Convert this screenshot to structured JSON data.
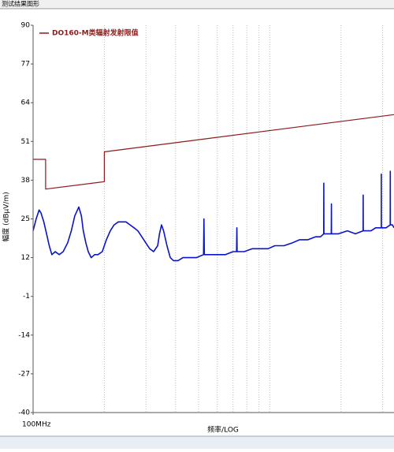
{
  "window_title": "测试结果图形",
  "chart_data": {
    "type": "line",
    "ylabel": "幅度 (dBμV/m)",
    "xlabel": "频率/LOG",
    "xlim": [
      100,
      3350
    ],
    "ylim": [
      -40,
      90
    ],
    "xlog": true,
    "yticks": [
      90,
      77,
      64,
      51,
      38,
      25,
      12,
      -1,
      -14,
      -27,
      -40
    ],
    "xticks": [
      {
        "value": 100,
        "label": "100MHz"
      }
    ],
    "xgrid": [
      200,
      300,
      400,
      500,
      600,
      700,
      800,
      900,
      1000,
      2000,
      3000
    ],
    "legend": "upper left",
    "series": [
      {
        "name": "DO160-M类辐射发射限值",
        "color": "#8b1a1a",
        "x": [
          100,
          113,
          113,
          200,
          200,
          3350
        ],
        "values": [
          45,
          45,
          35,
          37.5,
          47.5,
          60
        ]
      },
      {
        "color": "#0a14c8",
        "x": [
          100,
          103,
          106,
          108,
          111,
          114,
          117,
          120,
          124,
          129,
          134,
          140,
          145,
          150,
          156,
          160,
          163,
          167,
          171,
          176,
          182,
          188,
          196,
          204,
          212,
          220,
          229,
          238,
          247,
          257,
          267,
          277,
          288,
          299,
          311,
          323,
          336,
          342,
          349,
          356,
          368,
          380,
          392,
          410,
          430,
          457,
          490,
          525,
          527,
          529,
          560,
          600,
          650,
          700,
          724,
          726,
          728,
          780,
          844,
          900,
          984,
          1050,
          1148,
          1250,
          1338,
          1450,
          1560,
          1640,
          1690,
          1692,
          1694,
          1750,
          1820,
          1822,
          1824,
          1950,
          2130,
          2300,
          2480,
          2482,
          2484,
          2600,
          2680,
          2800,
          2890,
          2960,
          2962,
          2964,
          3050,
          3100,
          3230,
          3232,
          3234,
          3300,
          3350
        ],
        "values": [
          21,
          25,
          28,
          27,
          24,
          20,
          16,
          13,
          14,
          13,
          14,
          17,
          21,
          26,
          29,
          26,
          21,
          17,
          14,
          12,
          13,
          13,
          14,
          18,
          21,
          23,
          24,
          24,
          24,
          23,
          22,
          21,
          19,
          17,
          15,
          14,
          16,
          20,
          23,
          21,
          16,
          12,
          11,
          11,
          12,
          12,
          12,
          13,
          25,
          13,
          13,
          13,
          13,
          14,
          14,
          22,
          14,
          14,
          15,
          15,
          15,
          16,
          16,
          17,
          18,
          18,
          19,
          19,
          20,
          37,
          20,
          20,
          20,
          30,
          20,
          20,
          21,
          20,
          21,
          33,
          21,
          21,
          21,
          22,
          22,
          22,
          40,
          22,
          22,
          22,
          23,
          41,
          23,
          23,
          22
        ]
      }
    ]
  }
}
